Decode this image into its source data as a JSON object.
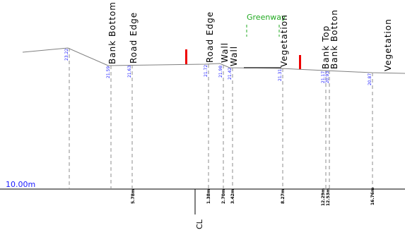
{
  "datum_label": "10.00m",
  "centerline_label": "CL",
  "greenway_label": "Greenway",
  "colors": {
    "ground": "#808080",
    "dash": "#8c8c8c",
    "elevation_text": "#1a1aff",
    "greenway": "#22aa22",
    "marker": "#ee0000"
  },
  "feature_labels": [
    "Bank Bottom",
    "Road Edge",
    "Road Edge",
    "Wall",
    "Wall",
    "Vegetation",
    "Bank Top",
    "Bank Botton",
    "Vegetation"
  ],
  "elevations": [
    "23.22",
    "21.59",
    "21.63",
    "21.72",
    "21.98",
    "21.42",
    "21.31",
    "21.17",
    "20.93",
    "20.87"
  ],
  "offsets": [
    "5.78m",
    "1.38m",
    "2.70m",
    "3.42m",
    "8.27m",
    "12.29m",
    "12.53m",
    "16.76m"
  ]
}
